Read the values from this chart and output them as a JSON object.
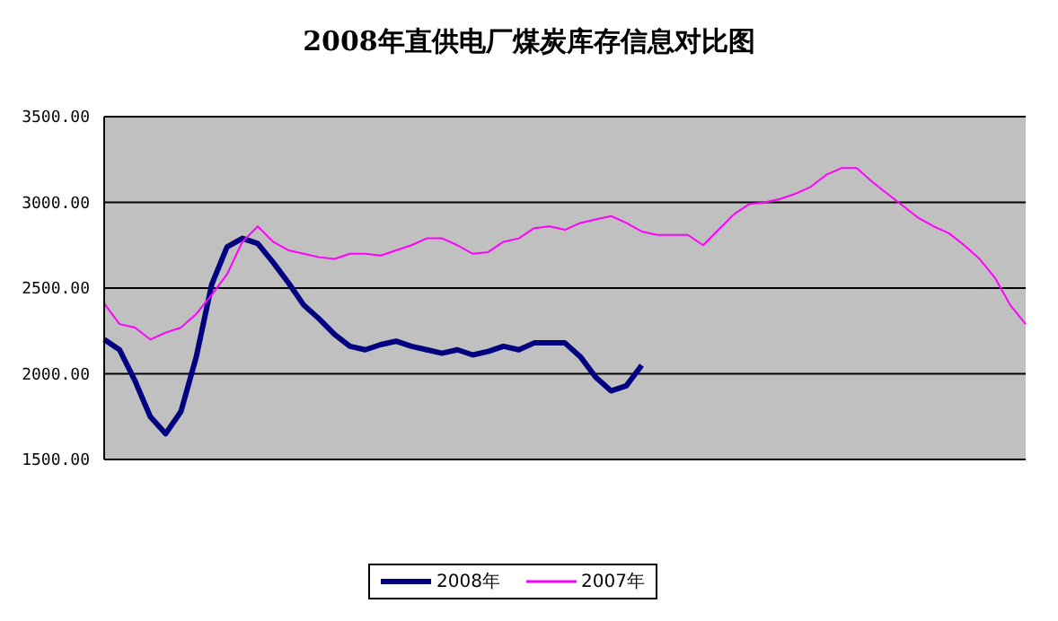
{
  "chart_data": {
    "type": "line",
    "title": "2008年直供电厂煤炭库存信息对比图",
    "categories": [
      null,
      null,
      null,
      null,
      null,
      null,
      null,
      null,
      null,
      null,
      null,
      null,
      null,
      null,
      null,
      null,
      null,
      null,
      null,
      null,
      null,
      null,
      null,
      null,
      null,
      null,
      null,
      null,
      null,
      null,
      null,
      null,
      null,
      null,
      null,
      null,
      null,
      null,
      null,
      null,
      null,
      null,
      null,
      null,
      null,
      null,
      null,
      null,
      null,
      null,
      null,
      null,
      null,
      null,
      null,
      null,
      null,
      null,
      null,
      null,
      null
    ],
    "series": [
      {
        "name": "2008年",
        "color": "#000080",
        "values": [
          2200,
          2140,
          1960,
          1750,
          1650,
          1780,
          2100,
          2520,
          2740,
          2790,
          2760,
          2650,
          2530,
          2400,
          2320,
          2230,
          2160,
          2140,
          2170,
          2190,
          2160,
          2140,
          2120,
          2140,
          2110,
          2130,
          2160,
          2140,
          2180,
          2180,
          2180,
          2100,
          1980,
          1900,
          1930,
          2050,
          null,
          null,
          null,
          null,
          null,
          null,
          null,
          null,
          null,
          null,
          null,
          null,
          null,
          null,
          null,
          null,
          null,
          null,
          null,
          null,
          null,
          null,
          null,
          null,
          null
        ]
      },
      {
        "name": "2007年",
        "color": "#ff00ff",
        "values": [
          2410,
          2290,
          2270,
          2200,
          2240,
          2270,
          2350,
          2460,
          2580,
          2770,
          2860,
          2770,
          2720,
          2700,
          2680,
          2670,
          2700,
          2700,
          2690,
          2720,
          2750,
          2790,
          2790,
          2750,
          2700,
          2710,
          2770,
          2790,
          2850,
          2860,
          2840,
          2880,
          2900,
          2920,
          2880,
          2830,
          2810,
          2810,
          2810,
          2750,
          2840,
          2930,
          2990,
          3000,
          3020,
          3050,
          3090,
          3160,
          3200,
          3200,
          3120,
          3050,
          2980,
          2910,
          2860,
          2820,
          2750,
          2670,
          2560,
          2400,
          2290
        ]
      }
    ],
    "ylim": [
      1500,
      3500
    ],
    "yticks": [
      {
        "value": 1500,
        "label": "1500.00"
      },
      {
        "value": 2000,
        "label": "2000.00"
      },
      {
        "value": 2500,
        "label": "2500.00"
      },
      {
        "value": 3000,
        "label": "3000.00"
      },
      {
        "value": 3500,
        "label": "3500.00"
      }
    ],
    "grid": "y",
    "legend": "bottom",
    "tick_labels": "y",
    "marker": "none",
    "line_style": "solid"
  }
}
